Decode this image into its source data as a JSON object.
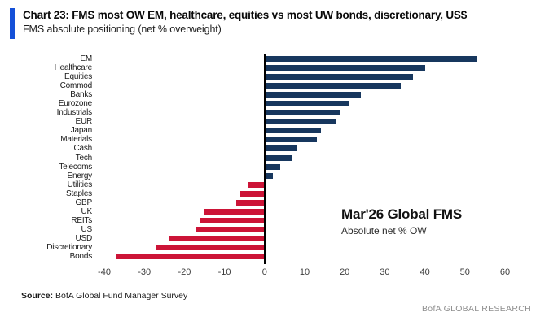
{
  "header": {
    "title": "Chart 23: FMS most OW EM, healthcare, equities vs most UW bonds, discretionary, US$",
    "subtitle": "FMS absolute positioning (net % overweight)"
  },
  "annotation": {
    "line1": "Mar'26 Global FMS",
    "line2": "Absolute net % OW"
  },
  "footer": {
    "source_label": "Source:",
    "source_text": " BofA Global Fund Manager Survey",
    "brand": "BofA GLOBAL RESEARCH"
  },
  "colors": {
    "accent_blue": "#1450D8",
    "overweight_navy": "#17375E",
    "underweight_red": "#CC1437",
    "zero_line": "#000000",
    "brand_gray": "#8F8F8F"
  },
  "chart_data": {
    "type": "bar",
    "orientation": "horizontal",
    "title": "FMS absolute positioning (net % overweight)",
    "xlabel": "net % overweight",
    "ylabel": "",
    "xlim": [
      -40,
      60
    ],
    "xticks": [
      -40,
      -30,
      -20,
      -10,
      0,
      10,
      20,
      30,
      40,
      50,
      60
    ],
    "grid": false,
    "legend": "none",
    "categories": [
      "EM",
      "Healthcare",
      "Equities",
      "Commod",
      "Banks",
      "Eurozone",
      "Industrials",
      "EUR",
      "Japan",
      "Materials",
      "Cash",
      "Tech",
      "Telecoms",
      "Energy",
      "Utilities",
      "Staples",
      "GBP",
      "UK",
      "REITs",
      "US",
      "USD",
      "Discretionary",
      "Bonds"
    ],
    "values": [
      53,
      40,
      37,
      34,
      24,
      21,
      19,
      18,
      14,
      13,
      8,
      7,
      4,
      2,
      -4,
      -6,
      -7,
      -15,
      -16,
      -17,
      -24,
      -27,
      -37
    ],
    "positive_color": "#17375E",
    "negative_color": "#CC1437"
  }
}
